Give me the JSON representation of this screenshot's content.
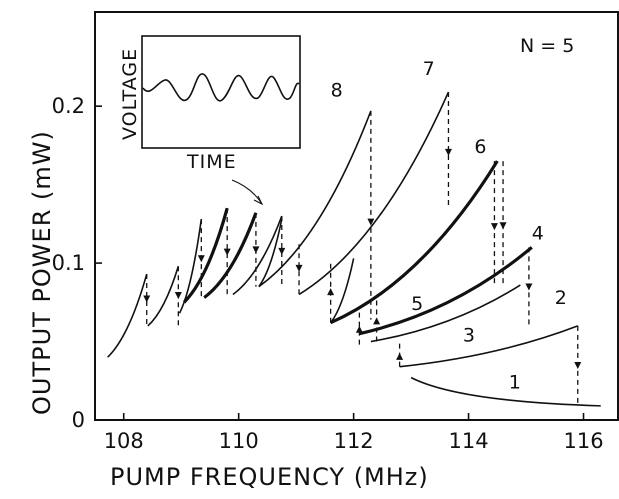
{
  "chart_data": {
    "type": "line",
    "title": "",
    "xlabel": "PUMP FREQUENCY (MHz)",
    "ylabel": "OUTPUT POWER (mW)",
    "xlim": [
      107.5,
      116.6
    ],
    "ylim": [
      0,
      0.26
    ],
    "xticks": [
      "108",
      "110",
      "112",
      "114",
      "116"
    ],
    "yticks": [
      "0",
      "0.1",
      "0.2"
    ],
    "annotation": "N = 5",
    "inset": {
      "xlabel": "TIME",
      "ylabel": "VOLTAGE"
    },
    "branches": [
      {
        "x": [
          107.72,
          108.4
        ],
        "y": [
          0.04,
          0.093
        ]
      },
      {
        "x": [
          108.42,
          108.95
        ],
        "y": [
          0.06,
          0.098
        ]
      },
      {
        "x": [
          108.97,
          109.35
        ],
        "y": [
          0.068,
          0.128
        ]
      },
      {
        "x": [
          109.05,
          109.8
        ],
        "y": [
          0.075,
          0.135
        ],
        "bold": true
      },
      {
        "x": [
          109.4,
          110.3
        ],
        "y": [
          0.078,
          0.132
        ],
        "bold": true
      },
      {
        "x": [
          109.9,
          110.75
        ],
        "y": [
          0.08,
          0.13
        ]
      },
      {
        "x": [
          110.35,
          110.75
        ],
        "y": [
          0.085,
          0.128
        ]
      },
      {
        "x": [
          110.35,
          112.3
        ],
        "y": [
          0.085,
          0.197
        ]
      },
      {
        "x": [
          111.05,
          113.65
        ],
        "y": [
          0.08,
          0.209
        ]
      },
      {
        "x": [
          111.6,
          112.0
        ],
        "y": [
          0.062,
          0.103
        ]
      },
      {
        "x": [
          111.6,
          114.5
        ],
        "y": [
          0.062,
          0.165
        ],
        "bold": true
      },
      {
        "x": [
          112.1,
          115.1
        ],
        "y": [
          0.055,
          0.11
        ],
        "bold": true
      },
      {
        "x": [
          112.3,
          114.9
        ],
        "y": [
          0.05,
          0.086
        ]
      },
      {
        "x": [
          112.8,
          115.9
        ],
        "y": [
          0.034,
          0.06
        ]
      },
      {
        "x": [
          113.0,
          116.3
        ],
        "y": [
          0.027,
          0.009
        ]
      }
    ],
    "jumps": [
      {
        "x": 108.4,
        "y": [
          0.093,
          0.06
        ]
      },
      {
        "x": 108.95,
        "y": [
          0.098,
          0.06
        ]
      },
      {
        "x": 109.35,
        "y": [
          0.128,
          0.078
        ]
      },
      {
        "x": 109.8,
        "y": [
          0.135,
          0.08
        ]
      },
      {
        "x": 110.3,
        "y": [
          0.132,
          0.085
        ]
      },
      {
        "x": 110.75,
        "y": [
          0.13,
          0.085
        ]
      },
      {
        "x": 111.05,
        "y": [
          0.112,
          0.08
        ]
      },
      {
        "x": 111.6,
        "y": [
          0.062,
          0.102
        ]
      },
      {
        "x": 112.3,
        "y": [
          0.197,
          0.064
        ]
      },
      {
        "x": 112.1,
        "y": [
          0.048,
          0.07
        ]
      },
      {
        "x": 112.4,
        "y": [
          0.05,
          0.078
        ]
      },
      {
        "x": 112.8,
        "y": [
          0.034,
          0.05
        ]
      },
      {
        "x": 113.65,
        "y": [
          0.209,
          0.135
        ]
      },
      {
        "x": 114.45,
        "y": [
          0.165,
          0.085
        ]
      },
      {
        "x": 114.6,
        "y": [
          0.165,
          0.086
        ]
      },
      {
        "x": 115.05,
        "y": [
          0.11,
          0.06
        ]
      },
      {
        "x": 115.9,
        "y": [
          0.06,
          0.01
        ]
      }
    ],
    "curve_labels": [
      {
        "text": "1",
        "x": 114.7,
        "y": 0.02
      },
      {
        "text": "2",
        "x": 115.5,
        "y": 0.074
      },
      {
        "text": "3",
        "x": 113.9,
        "y": 0.05
      },
      {
        "text": "4",
        "x": 115.1,
        "y": 0.115
      },
      {
        "text": "5",
        "x": 113.0,
        "y": 0.07
      },
      {
        "text": "6",
        "x": 114.1,
        "y": 0.17
      },
      {
        "text": "7",
        "x": 113.2,
        "y": 0.22
      },
      {
        "text": "8",
        "x": 111.6,
        "y": 0.206
      }
    ]
  }
}
